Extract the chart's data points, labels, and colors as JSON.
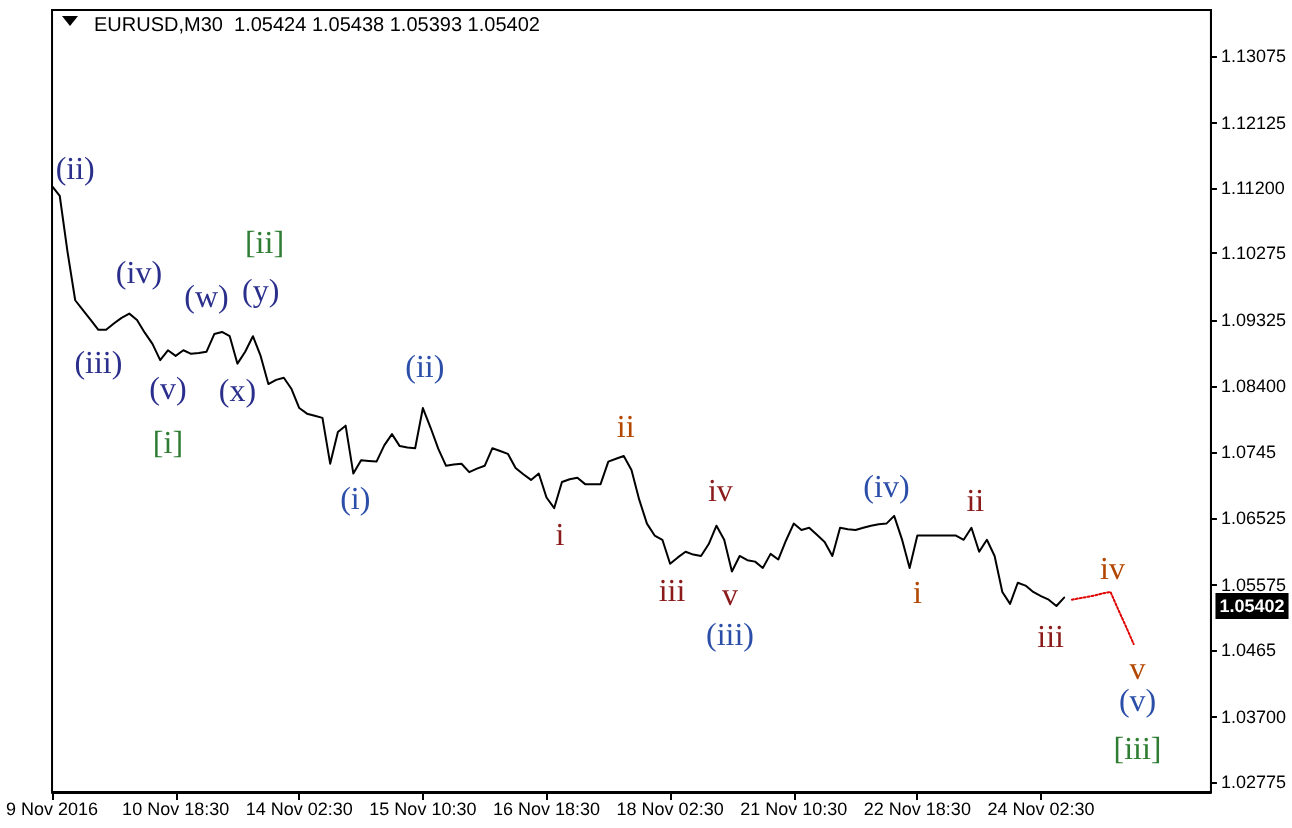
{
  "chart_data": {
    "type": "line",
    "title": "EURUSD,M30  1.05424 1.05438 1.05393 1.05402",
    "categories": [
      "9 Nov 2016",
      null,
      null,
      null,
      null,
      null,
      null,
      null,
      null,
      null,
      null,
      null,
      null,
      null,
      null,
      null,
      "10 Nov 18:30",
      null,
      null,
      null,
      null,
      null,
      null,
      null,
      null,
      null,
      null,
      null,
      null,
      null,
      null,
      null,
      "14 Nov 02:30",
      null,
      null,
      null,
      null,
      null,
      null,
      null,
      null,
      null,
      null,
      null,
      null,
      null,
      null,
      null,
      "15 Nov 10:30",
      null,
      null,
      null,
      null,
      null,
      null,
      null,
      null,
      null,
      null,
      null,
      null,
      null,
      null,
      null,
      "16 Nov 18:30",
      null,
      null,
      null,
      null,
      null,
      null,
      null,
      null,
      null,
      null,
      null,
      null,
      null,
      null,
      null,
      "18 Nov 02:30",
      null,
      null,
      null,
      null,
      null,
      null,
      null,
      null,
      null,
      null,
      null,
      null,
      null,
      null,
      null,
      "21 Nov 10:30",
      null,
      null,
      null,
      null,
      null,
      null,
      null,
      null,
      null,
      null,
      null,
      null,
      null,
      null,
      null,
      "22 Nov 18:30",
      null,
      null,
      null,
      null,
      null,
      null,
      null,
      null,
      null,
      null,
      null,
      null,
      null,
      null,
      null,
      "24 Nov 02:30",
      null,
      null,
      null,
      null,
      null,
      null,
      null,
      null,
      null,
      null,
      null,
      null,
      null,
      null,
      null,
      null,
      null,
      null,
      null,
      null,
      null,
      null
    ],
    "ylim": [
      1.0263,
      1.1373
    ],
    "yticks": [
      1.13075,
      1.12125,
      {
        "value": 1.112,
        "label": "1.11200"
      },
      1.10275,
      1.09325,
      {
        "value": 1.084,
        "label": "1.08400"
      },
      1.0745,
      1.06525,
      1.05575,
      1.0465,
      {
        "value": 1.037,
        "label": "1.03700"
      },
      1.02775
    ],
    "grid": false,
    "marker": "none",
    "series": [
      {
        "color": "#000000",
        "line_style": "solid",
        "values": [
          1.1123,
          1.1109,
          1.103,
          1.0961,
          1.0947,
          1.0933,
          1.0919,
          1.0919,
          1.0928,
          1.0936,
          1.0942,
          1.0933,
          1.0915,
          1.0899,
          1.0876,
          1.089,
          1.0882,
          1.089,
          1.0885,
          1.0886,
          1.0888,
          1.0913,
          1.0916,
          1.091,
          1.0871,
          1.0888,
          1.091,
          1.0882,
          1.0842,
          1.0848,
          1.0851,
          1.0835,
          1.0808,
          1.08,
          1.0797,
          1.0794,
          1.0729,
          1.0774,
          1.0783,
          1.0715,
          1.0734,
          1.0733,
          1.0732,
          1.0755,
          1.0771,
          1.0754,
          1.0752,
          1.0751,
          1.0808,
          1.078,
          1.075,
          1.0726,
          1.0728,
          1.0729,
          1.0717,
          1.0722,
          1.0726,
          1.0751,
          1.0747,
          1.0743,
          1.0723,
          1.0714,
          1.0706,
          1.0715,
          1.0681,
          1.0666,
          1.0703,
          1.0707,
          1.0709,
          1.07,
          1.07,
          1.07,
          1.0732,
          1.0736,
          1.074,
          1.072,
          1.0678,
          1.0644,
          1.0627,
          1.0621,
          1.0587,
          1.0596,
          1.0604,
          1.06,
          1.0598,
          1.0615,
          1.0641,
          1.0621,
          1.0576,
          1.0598,
          1.0592,
          1.059,
          1.0581,
          1.0601,
          1.0593,
          1.062,
          1.0644,
          1.0635,
          1.0638,
          1.0628,
          1.0618,
          1.0598,
          1.0638,
          1.0636,
          1.0635,
          1.0638,
          1.0641,
          1.0643,
          1.0644,
          1.0655,
          1.0622,
          1.0581,
          1.0627,
          1.0627,
          1.0627,
          1.0627,
          1.0627,
          1.0627,
          1.0621,
          1.0638,
          1.0604,
          1.0621,
          1.0598,
          1.0547,
          1.053,
          1.056,
          1.0556,
          1.0547,
          1.0541,
          1.0536,
          1.0527,
          1.0539,
          null,
          null,
          null,
          null,
          null,
          null,
          null,
          null,
          null,
          null,
          null,
          null,
          null,
          null,
          null,
          null,
          null,
          null,
          null
        ]
      },
      {
        "color": "#e00000",
        "line_style": "dotted",
        "values": [
          null,
          null,
          null,
          null,
          null,
          null,
          null,
          null,
          null,
          null,
          null,
          null,
          null,
          null,
          null,
          null,
          null,
          null,
          null,
          null,
          null,
          null,
          null,
          null,
          null,
          null,
          null,
          null,
          null,
          null,
          null,
          null,
          null,
          null,
          null,
          null,
          null,
          null,
          null,
          null,
          null,
          null,
          null,
          null,
          null,
          null,
          null,
          null,
          null,
          null,
          null,
          null,
          null,
          null,
          null,
          null,
          null,
          null,
          null,
          null,
          null,
          null,
          null,
          null,
          null,
          null,
          null,
          null,
          null,
          null,
          null,
          null,
          null,
          null,
          null,
          null,
          null,
          null,
          null,
          null,
          null,
          null,
          null,
          null,
          null,
          null,
          null,
          null,
          null,
          null,
          null,
          null,
          null,
          null,
          null,
          null,
          null,
          null,
          null,
          null,
          null,
          null,
          null,
          null,
          null,
          null,
          null,
          null,
          null,
          null,
          null,
          null,
          null,
          null,
          null,
          null,
          null,
          null,
          null,
          null,
          null,
          null,
          null,
          null,
          null,
          null,
          null,
          null,
          null,
          null,
          null,
          null,
          1.0536,
          1.0538,
          1.054,
          1.0542,
          1.0545,
          1.0547,
          1.0522,
          1.0498,
          1.0473,
          null,
          null,
          null,
          null,
          null,
          null,
          null,
          null,
          null,
          null
        ]
      }
    ],
    "annotations": [
      "(ii)",
      "(iv)",
      "(iii)",
      "(w)",
      "(y)",
      "[ii]",
      "(v)",
      "(x)",
      "[i]",
      "(ii)",
      "(i)",
      "ii",
      "i",
      "iii",
      "iv",
      "v",
      "(iii)",
      "(iv)",
      "ii",
      "i",
      "iii",
      "iv",
      "v",
      "(v)",
      "[iii]",
      "1.05402"
    ]
  }
}
